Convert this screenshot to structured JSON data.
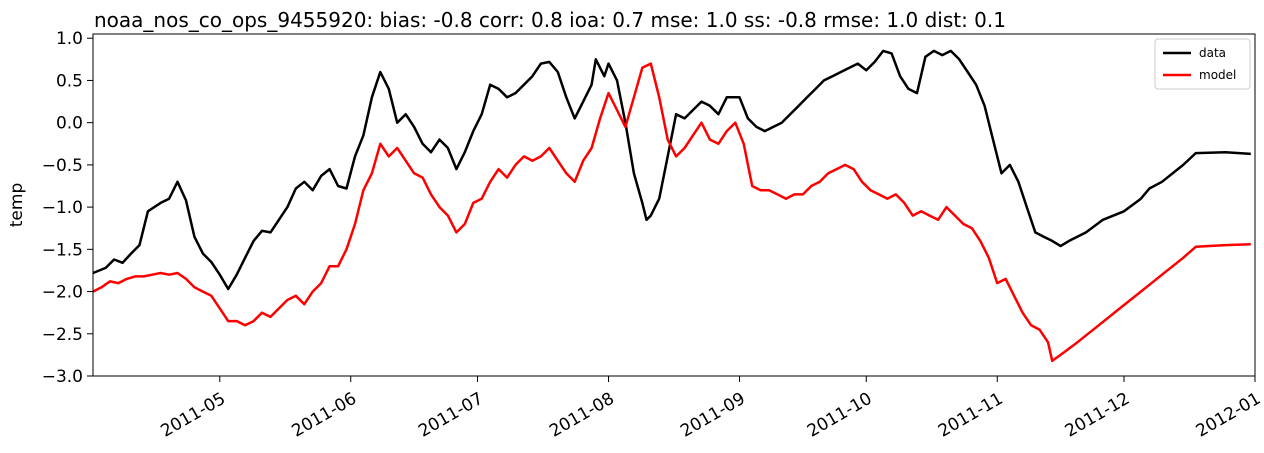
{
  "chart_data": {
    "type": "line",
    "title": "noaa_nos_co_ops_9455920: bias: -0.8  corr: 0.8  ioa: 0.7  mse: 1.0  ss: -0.8  rmse: 1.0  dist: 0.1",
    "xlabel": "",
    "ylabel": "temp",
    "xlim": [
      "2011-04-01",
      "2012-01-01"
    ],
    "ylim": [
      -3.0,
      1.05
    ],
    "yticks": [
      1.0,
      0.5,
      0.0,
      -0.5,
      -1.0,
      -1.5,
      -2.0,
      -2.5,
      -3.0
    ],
    "ytick_labels": [
      "1.0",
      "0.5",
      "0.0",
      "−0.5",
      "−1.0",
      "−1.5",
      "−2.0",
      "−2.5",
      "−3.0"
    ],
    "xticks": [
      "2011-05-01",
      "2011-06-01",
      "2011-07-01",
      "2011-08-01",
      "2011-09-01",
      "2011-10-01",
      "2011-11-01",
      "2011-12-01",
      "2012-01-01"
    ],
    "xtick_labels": [
      "2011-05",
      "2011-06",
      "2011-07",
      "2011-08",
      "2011-09",
      "2011-10",
      "2011-11",
      "2011-12",
      "2012-01"
    ],
    "grid": false,
    "legend": "top-right",
    "series": [
      {
        "name": "data",
        "color": "#000000",
        "points": [
          [
            "2011-04-01",
            -1.78
          ],
          [
            "2011-04-04",
            -1.72
          ],
          [
            "2011-04-06",
            -1.62
          ],
          [
            "2011-04-08",
            -1.66
          ],
          [
            "2011-04-10",
            -1.55
          ],
          [
            "2011-04-12",
            -1.45
          ],
          [
            "2011-04-14",
            -1.05
          ],
          [
            "2011-04-17",
            -0.95
          ],
          [
            "2011-04-19",
            -0.9
          ],
          [
            "2011-04-21",
            -0.7
          ],
          [
            "2011-04-23",
            -0.92
          ],
          [
            "2011-04-25",
            -1.35
          ],
          [
            "2011-04-27",
            -1.55
          ],
          [
            "2011-04-29",
            -1.65
          ],
          [
            "2011-05-01",
            -1.8
          ],
          [
            "2011-05-03",
            -1.97
          ],
          [
            "2011-05-05",
            -1.8
          ],
          [
            "2011-05-07",
            -1.6
          ],
          [
            "2011-05-09",
            -1.4
          ],
          [
            "2011-05-11",
            -1.28
          ],
          [
            "2011-05-13",
            -1.3
          ],
          [
            "2011-05-15",
            -1.15
          ],
          [
            "2011-05-17",
            -1.0
          ],
          [
            "2011-05-19",
            -0.78
          ],
          [
            "2011-05-21",
            -0.7
          ],
          [
            "2011-05-23",
            -0.8
          ],
          [
            "2011-05-25",
            -0.63
          ],
          [
            "2011-05-27",
            -0.55
          ],
          [
            "2011-05-29",
            -0.75
          ],
          [
            "2011-05-31",
            -0.78
          ],
          [
            "2011-06-02",
            -0.4
          ],
          [
            "2011-06-04",
            -0.15
          ],
          [
            "2011-06-06",
            0.3
          ],
          [
            "2011-06-08",
            0.6
          ],
          [
            "2011-06-10",
            0.4
          ],
          [
            "2011-06-12",
            0.0
          ],
          [
            "2011-06-14",
            0.1
          ],
          [
            "2011-06-16",
            -0.05
          ],
          [
            "2011-06-18",
            -0.25
          ],
          [
            "2011-06-20",
            -0.35
          ],
          [
            "2011-06-22",
            -0.2
          ],
          [
            "2011-06-24",
            -0.3
          ],
          [
            "2011-06-26",
            -0.55
          ],
          [
            "2011-06-28",
            -0.35
          ],
          [
            "2011-06-30",
            -0.1
          ],
          [
            "2011-07-02",
            0.1
          ],
          [
            "2011-07-04",
            0.45
          ],
          [
            "2011-07-06",
            0.4
          ],
          [
            "2011-07-08",
            0.3
          ],
          [
            "2011-07-10",
            0.35
          ],
          [
            "2011-07-12",
            0.45
          ],
          [
            "2011-07-14",
            0.55
          ],
          [
            "2011-07-16",
            0.7
          ],
          [
            "2011-07-18",
            0.72
          ],
          [
            "2011-07-20",
            0.6
          ],
          [
            "2011-07-22",
            0.3
          ],
          [
            "2011-07-24",
            0.05
          ],
          [
            "2011-07-26",
            0.25
          ],
          [
            "2011-07-28",
            0.45
          ],
          [
            "2011-07-29",
            0.75
          ],
          [
            "2011-07-31",
            0.55
          ],
          [
            "2011-08-01",
            0.7
          ],
          [
            "2011-08-03",
            0.5
          ],
          [
            "2011-08-05",
            0.0
          ],
          [
            "2011-08-07",
            -0.6
          ],
          [
            "2011-08-09",
            -0.95
          ],
          [
            "2011-08-10",
            -1.15
          ],
          [
            "2011-08-11",
            -1.1
          ],
          [
            "2011-08-13",
            -0.9
          ],
          [
            "2011-08-15",
            -0.4
          ],
          [
            "2011-08-17",
            0.1
          ],
          [
            "2011-08-19",
            0.05
          ],
          [
            "2011-08-21",
            0.15
          ],
          [
            "2011-08-23",
            0.25
          ],
          [
            "2011-08-25",
            0.2
          ],
          [
            "2011-08-27",
            0.1
          ],
          [
            "2011-08-29",
            0.3
          ],
          [
            "2011-09-01",
            0.3
          ],
          [
            "2011-09-03",
            0.05
          ],
          [
            "2011-09-05",
            -0.05
          ],
          [
            "2011-09-07",
            -0.1
          ],
          [
            "2011-09-09",
            -0.05
          ],
          [
            "2011-09-11",
            0.0
          ],
          [
            "2011-09-13",
            0.1
          ],
          [
            "2011-09-15",
            0.2
          ],
          [
            "2011-09-17",
            0.3
          ],
          [
            "2011-09-19",
            0.4
          ],
          [
            "2011-09-21",
            0.5
          ],
          [
            "2011-09-23",
            0.55
          ],
          [
            "2011-09-25",
            0.6
          ],
          [
            "2011-09-27",
            0.65
          ],
          [
            "2011-09-29",
            0.7
          ],
          [
            "2011-10-01",
            0.62
          ],
          [
            "2011-10-03",
            0.72
          ],
          [
            "2011-10-05",
            0.85
          ],
          [
            "2011-10-07",
            0.82
          ],
          [
            "2011-10-09",
            0.55
          ],
          [
            "2011-10-11",
            0.4
          ],
          [
            "2011-10-13",
            0.35
          ],
          [
            "2011-10-15",
            0.78
          ],
          [
            "2011-10-17",
            0.85
          ],
          [
            "2011-10-19",
            0.8
          ],
          [
            "2011-10-21",
            0.85
          ],
          [
            "2011-10-23",
            0.75
          ],
          [
            "2011-10-25",
            0.6
          ],
          [
            "2011-10-27",
            0.45
          ],
          [
            "2011-10-29",
            0.2
          ],
          [
            "2011-10-31",
            -0.2
          ],
          [
            "2011-11-02",
            -0.6
          ],
          [
            "2011-11-04",
            -0.5
          ],
          [
            "2011-11-06",
            -0.7
          ],
          [
            "2011-11-08",
            -1.0
          ],
          [
            "2011-11-10",
            -1.3
          ],
          [
            "2011-11-12",
            -1.35
          ],
          [
            "2011-11-14",
            -1.4
          ],
          [
            "2011-11-16",
            -1.46
          ],
          [
            "2011-11-18",
            -1.4
          ],
          [
            "2011-11-22",
            -1.3
          ],
          [
            "2011-11-26",
            -1.15
          ],
          [
            "2011-12-01",
            -1.05
          ],
          [
            "2011-12-05",
            -0.9
          ],
          [
            "2011-12-07",
            -0.78
          ],
          [
            "2011-12-10",
            -0.7
          ],
          [
            "2011-12-15",
            -0.5
          ],
          [
            "2011-12-18",
            -0.36
          ],
          [
            "2011-12-25",
            -0.35
          ],
          [
            "2011-12-31",
            -0.37
          ]
        ]
      },
      {
        "name": "model",
        "color": "#ff0000",
        "points": [
          [
            "2011-04-01",
            -2.0
          ],
          [
            "2011-04-03",
            -1.95
          ],
          [
            "2011-04-05",
            -1.88
          ],
          [
            "2011-04-07",
            -1.9
          ],
          [
            "2011-04-09",
            -1.85
          ],
          [
            "2011-04-11",
            -1.82
          ],
          [
            "2011-04-13",
            -1.82
          ],
          [
            "2011-04-15",
            -1.8
          ],
          [
            "2011-04-17",
            -1.78
          ],
          [
            "2011-04-19",
            -1.8
          ],
          [
            "2011-04-21",
            -1.78
          ],
          [
            "2011-04-23",
            -1.85
          ],
          [
            "2011-04-25",
            -1.95
          ],
          [
            "2011-04-27",
            -2.0
          ],
          [
            "2011-04-29",
            -2.05
          ],
          [
            "2011-05-01",
            -2.2
          ],
          [
            "2011-05-03",
            -2.35
          ],
          [
            "2011-05-05",
            -2.35
          ],
          [
            "2011-05-07",
            -2.4
          ],
          [
            "2011-05-09",
            -2.35
          ],
          [
            "2011-05-11",
            -2.25
          ],
          [
            "2011-05-13",
            -2.3
          ],
          [
            "2011-05-15",
            -2.2
          ],
          [
            "2011-05-17",
            -2.1
          ],
          [
            "2011-05-19",
            -2.05
          ],
          [
            "2011-05-21",
            -2.15
          ],
          [
            "2011-05-23",
            -2.0
          ],
          [
            "2011-05-25",
            -1.9
          ],
          [
            "2011-05-27",
            -1.7
          ],
          [
            "2011-05-29",
            -1.7
          ],
          [
            "2011-05-31",
            -1.5
          ],
          [
            "2011-06-02",
            -1.2
          ],
          [
            "2011-06-04",
            -0.8
          ],
          [
            "2011-06-06",
            -0.6
          ],
          [
            "2011-06-08",
            -0.25
          ],
          [
            "2011-06-10",
            -0.4
          ],
          [
            "2011-06-12",
            -0.3
          ],
          [
            "2011-06-14",
            -0.45
          ],
          [
            "2011-06-16",
            -0.6
          ],
          [
            "2011-06-18",
            -0.65
          ],
          [
            "2011-06-20",
            -0.85
          ],
          [
            "2011-06-22",
            -1.0
          ],
          [
            "2011-06-24",
            -1.1
          ],
          [
            "2011-06-26",
            -1.3
          ],
          [
            "2011-06-28",
            -1.2
          ],
          [
            "2011-06-30",
            -0.95
          ],
          [
            "2011-07-02",
            -0.9
          ],
          [
            "2011-07-04",
            -0.7
          ],
          [
            "2011-07-06",
            -0.55
          ],
          [
            "2011-07-08",
            -0.65
          ],
          [
            "2011-07-10",
            -0.5
          ],
          [
            "2011-07-12",
            -0.4
          ],
          [
            "2011-07-14",
            -0.45
          ],
          [
            "2011-07-16",
            -0.4
          ],
          [
            "2011-07-18",
            -0.3
          ],
          [
            "2011-07-20",
            -0.45
          ],
          [
            "2011-07-22",
            -0.6
          ],
          [
            "2011-07-24",
            -0.7
          ],
          [
            "2011-07-26",
            -0.45
          ],
          [
            "2011-07-28",
            -0.3
          ],
          [
            "2011-07-30",
            0.05
          ],
          [
            "2011-08-01",
            0.35
          ],
          [
            "2011-08-03",
            0.15
          ],
          [
            "2011-08-05",
            -0.05
          ],
          [
            "2011-08-07",
            0.3
          ],
          [
            "2011-08-09",
            0.65
          ],
          [
            "2011-08-11",
            0.7
          ],
          [
            "2011-08-13",
            0.3
          ],
          [
            "2011-08-15",
            -0.2
          ],
          [
            "2011-08-17",
            -0.4
          ],
          [
            "2011-08-19",
            -0.3
          ],
          [
            "2011-08-21",
            -0.15
          ],
          [
            "2011-08-23",
            0.0
          ],
          [
            "2011-08-25",
            -0.2
          ],
          [
            "2011-08-27",
            -0.25
          ],
          [
            "2011-08-29",
            -0.1
          ],
          [
            "2011-08-31",
            0.0
          ],
          [
            "2011-09-02",
            -0.25
          ],
          [
            "2011-09-04",
            -0.75
          ],
          [
            "2011-09-06",
            -0.8
          ],
          [
            "2011-09-08",
            -0.8
          ],
          [
            "2011-09-10",
            -0.85
          ],
          [
            "2011-09-12",
            -0.9
          ],
          [
            "2011-09-14",
            -0.85
          ],
          [
            "2011-09-16",
            -0.85
          ],
          [
            "2011-09-18",
            -0.75
          ],
          [
            "2011-09-20",
            -0.7
          ],
          [
            "2011-09-22",
            -0.6
          ],
          [
            "2011-09-24",
            -0.55
          ],
          [
            "2011-09-26",
            -0.5
          ],
          [
            "2011-09-28",
            -0.55
          ],
          [
            "2011-09-30",
            -0.7
          ],
          [
            "2011-10-02",
            -0.8
          ],
          [
            "2011-10-04",
            -0.85
          ],
          [
            "2011-10-06",
            -0.9
          ],
          [
            "2011-10-08",
            -0.85
          ],
          [
            "2011-10-10",
            -0.95
          ],
          [
            "2011-10-12",
            -1.1
          ],
          [
            "2011-10-14",
            -1.05
          ],
          [
            "2011-10-16",
            -1.1
          ],
          [
            "2011-10-18",
            -1.15
          ],
          [
            "2011-10-20",
            -1.0
          ],
          [
            "2011-10-22",
            -1.1
          ],
          [
            "2011-10-24",
            -1.2
          ],
          [
            "2011-10-26",
            -1.25
          ],
          [
            "2011-10-28",
            -1.4
          ],
          [
            "2011-10-30",
            -1.6
          ],
          [
            "2011-11-01",
            -1.9
          ],
          [
            "2011-11-03",
            -1.85
          ],
          [
            "2011-11-05",
            -2.05
          ],
          [
            "2011-11-07",
            -2.25
          ],
          [
            "2011-11-09",
            -2.4
          ],
          [
            "2011-11-11",
            -2.45
          ],
          [
            "2011-11-13",
            -2.6
          ],
          [
            "2011-11-14",
            -2.82
          ],
          [
            "2011-11-16",
            -2.75
          ],
          [
            "2011-11-20",
            -2.6
          ],
          [
            "2011-11-25",
            -2.4
          ],
          [
            "2011-11-30",
            -2.2
          ],
          [
            "2011-12-05",
            -2.0
          ],
          [
            "2011-12-10",
            -1.8
          ],
          [
            "2011-12-15",
            -1.6
          ],
          [
            "2011-12-18",
            -1.47
          ],
          [
            "2011-12-25",
            -1.45
          ],
          [
            "2011-12-31",
            -1.44
          ]
        ]
      }
    ]
  }
}
